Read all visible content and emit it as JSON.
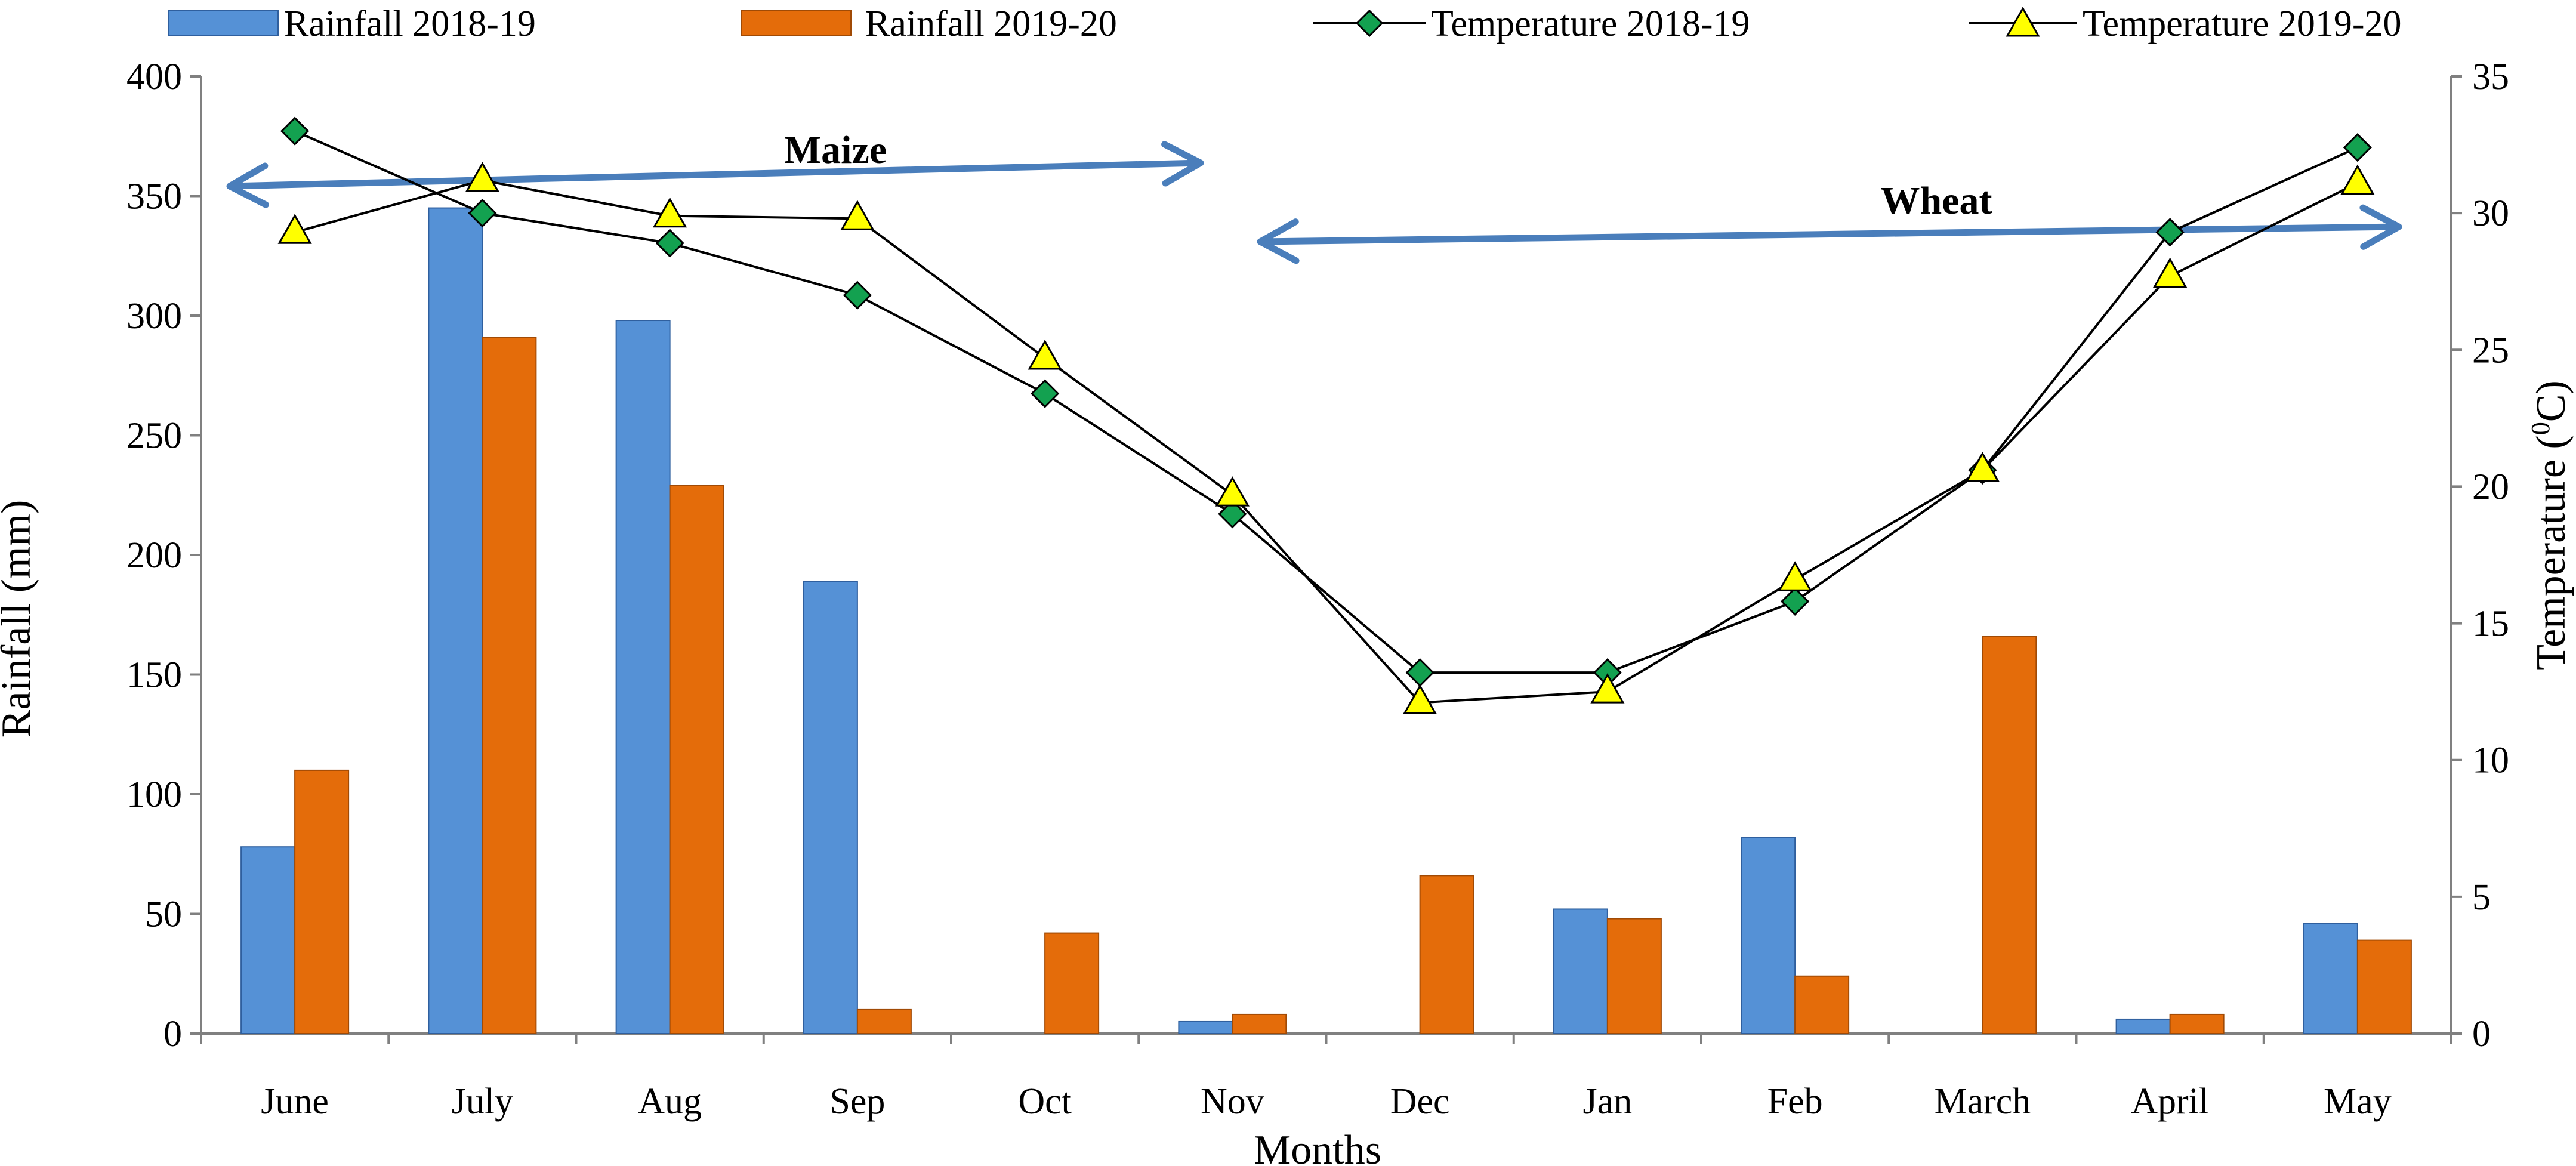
{
  "chart_data": {
    "type": "bar-line-combo",
    "title": "",
    "xlabel": "Months",
    "ylabel": "Rainfall (mm)",
    "y2label": "Temperature (",
    "y2label_sup": "0",
    "y2label_unit": "C)",
    "categories": [
      "June",
      "July",
      "Aug",
      "Sep",
      "Oct",
      "Nov",
      "Dec",
      "Jan",
      "Feb",
      "March",
      "April",
      "May"
    ],
    "ylim": [
      0,
      400
    ],
    "y_ticks": [
      0,
      50,
      100,
      150,
      200,
      250,
      300,
      350,
      400
    ],
    "y2lim": [
      0,
      35
    ],
    "y2_ticks": [
      0,
      5,
      10,
      15,
      20,
      25,
      30,
      35
    ],
    "grid": false,
    "legend_position": "top",
    "bar_series": [
      {
        "name": "Rainfall 2018-19",
        "color": "#5591D6",
        "values": [
          78,
          345,
          298,
          189,
          0,
          5,
          0,
          52,
          82,
          0,
          6,
          46
        ]
      },
      {
        "name": "Rainfall 2019-20",
        "color": "#E46C0A",
        "values": [
          110,
          291,
          229,
          10,
          42,
          8,
          66,
          48,
          24,
          166,
          8,
          39
        ]
      }
    ],
    "line_series": [
      {
        "name": "Temperature 2018-19",
        "marker": "diamond",
        "color": "#13A150",
        "values": [
          33.0,
          30.0,
          28.9,
          27.0,
          23.4,
          19.0,
          13.2,
          13.2,
          15.8,
          20.6,
          29.3,
          32.4
        ]
      },
      {
        "name": "Temperature 2019-20",
        "marker": "triangle",
        "color": "#FFFF00",
        "values": [
          29.3,
          31.2,
          29.9,
          29.8,
          24.7,
          19.7,
          12.1,
          12.5,
          16.6,
          20.6,
          27.7,
          31.1
        ]
      }
    ],
    "annotations": [
      {
        "text": "Maize",
        "arrow": "double",
        "from_category": "June",
        "to_category": "Oct",
        "color": "#4A7EBB"
      },
      {
        "text": "Wheat",
        "arrow": "double",
        "from_category": "Nov",
        "to_category": "May",
        "color": "#4A7EBB"
      }
    ]
  }
}
